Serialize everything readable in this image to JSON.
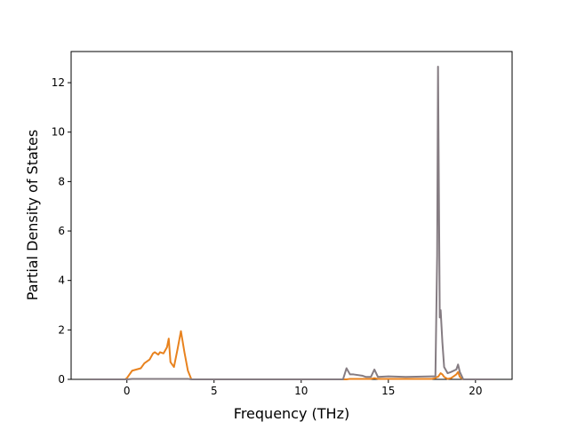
{
  "chart_data": {
    "type": "line",
    "xlabel": "Frequency (THz)",
    "ylabel": "Partial Density of States",
    "x": [
      -2.1,
      -0.1,
      0,
      0.3,
      0.8,
      1.0,
      1.3,
      1.5,
      1.6,
      1.8,
      1.9,
      2.1,
      2.3,
      2.4,
      2.5,
      2.7,
      2.9,
      3.1,
      3.3,
      3.5,
      3.7,
      12.4,
      12.6,
      12.8,
      13.0,
      13.5,
      13.7,
      14.0,
      14.2,
      14.4,
      15,
      16,
      17.5,
      17.7,
      17.8,
      17.85,
      17.95,
      18.0,
      18.1,
      18.2,
      18.4,
      18.6,
      18.9,
      19.0,
      19.1,
      19.3,
      21.1
    ],
    "series": [
      {
        "color": "#e8821e",
        "values": [
          0,
          0,
          0.05,
          0.35,
          0.45,
          0.65,
          0.8,
          1.05,
          1.1,
          1.0,
          1.1,
          1.05,
          1.3,
          1.65,
          0.7,
          0.5,
          1.2,
          1.95,
          1.1,
          0.35,
          0,
          0,
          0,
          0.02,
          0.02,
          0.02,
          0.02,
          0.02,
          0.05,
          0.02,
          0.02,
          0.02,
          0.02,
          0.05,
          0.1,
          0.1,
          0.2,
          0.25,
          0.2,
          0.1,
          0.02,
          0.05,
          0.2,
          0.3,
          0.1,
          0,
          0
        ]
      },
      {
        "color": "#857c82",
        "values": [
          0,
          0,
          0,
          0.02,
          0.02,
          0.02,
          0.02,
          0.02,
          0.02,
          0.02,
          0.02,
          0.02,
          0.02,
          0.02,
          0.02,
          0.02,
          0.02,
          0.02,
          0.02,
          0.02,
          0,
          0,
          0.45,
          0.2,
          0.2,
          0.15,
          0.1,
          0.1,
          0.4,
          0.1,
          0.12,
          0.1,
          0.12,
          0.12,
          5,
          12.65,
          2.5,
          2.8,
          1.5,
          0.5,
          0.25,
          0.3,
          0.4,
          0.6,
          0.3,
          0,
          0
        ]
      }
    ],
    "xlim": [
      -3.2,
      22.1
    ],
    "ylim": [
      0,
      13.26
    ],
    "xticks": [
      0,
      5,
      10,
      15,
      20
    ],
    "yticks": [
      0,
      2,
      4,
      6,
      8,
      10,
      12
    ]
  }
}
